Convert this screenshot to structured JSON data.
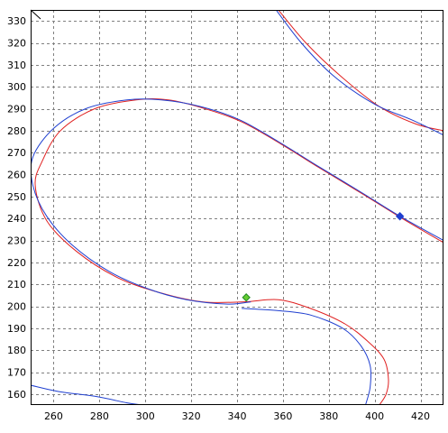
{
  "chart_data": {
    "type": "line",
    "title": "",
    "xlabel": "",
    "ylabel": "",
    "xlim": [
      250,
      430
    ],
    "ylim": [
      155,
      335
    ],
    "x_ticks": [
      260,
      280,
      300,
      320,
      340,
      360,
      380,
      400,
      420
    ],
    "y_ticks": [
      160,
      170,
      180,
      190,
      200,
      210,
      220,
      230,
      240,
      250,
      260,
      270,
      280,
      290,
      300,
      310,
      320,
      330
    ],
    "grid": true,
    "grid_color": "#808080",
    "legend": "none",
    "series": [
      {
        "color": "#e02020",
        "segments": [
          [
            [
              358,
              335
            ],
            [
              370,
              320
            ],
            [
              385,
              305
            ],
            [
              402,
              291
            ],
            [
              418,
              283
            ],
            [
              430,
              280
            ]
          ],
          [
            [
              430,
              229
            ],
            [
              412,
              240
            ],
            [
              395,
              251
            ],
            [
              376,
              263
            ],
            [
              359,
              274
            ],
            [
              342,
              284
            ],
            [
              326,
              290
            ],
            [
              310,
              294
            ],
            [
              296,
              294
            ],
            [
              278,
              290
            ],
            [
              263,
              280
            ],
            [
              255,
              266
            ],
            [
              252,
              255
            ],
            [
              257,
              239
            ],
            [
              270,
              225
            ],
            [
              288,
              213
            ],
            [
              307,
              206
            ],
            [
              325,
              202
            ],
            [
              343,
              202
            ],
            [
              358,
              203
            ],
            [
              372,
              199
            ],
            [
              387,
              192
            ],
            [
              397,
              184
            ],
            [
              404,
              176
            ],
            [
              406,
              167
            ],
            [
              405,
              160
            ],
            [
              402,
              155
            ]
          ]
        ]
      },
      {
        "color": "#1f3fd0",
        "segments": [
          [
            [
              357,
              335
            ],
            [
              368,
              320
            ],
            [
              382,
              305
            ],
            [
              400,
              292
            ],
            [
              416,
              285
            ],
            [
              430,
              278
            ]
          ],
          [
            [
              430,
              230
            ],
            [
              411,
              241
            ],
            [
              394,
              252
            ],
            [
              375,
              264
            ],
            [
              358,
              275
            ],
            [
              341,
              285
            ],
            [
              324,
              291
            ],
            [
              307,
              294
            ],
            [
              292,
              294
            ],
            [
              274,
              290
            ],
            [
              260,
              281
            ],
            [
              251,
              268
            ],
            [
              251,
              255
            ],
            [
              257,
              241
            ],
            [
              268,
              228
            ],
            [
              284,
              216
            ],
            [
              301,
              208
            ],
            [
              318,
              203
            ],
            [
              336,
              201
            ],
            [
              346,
              202
            ]
          ],
          [
            [
              342,
              199
            ],
            [
              358,
              198
            ],
            [
              372,
              196
            ],
            [
              386,
              190
            ],
            [
              394,
              182
            ],
            [
              398,
              173
            ],
            [
              398,
              163
            ],
            [
              396,
              155
            ]
          ],
          [
            [
              250,
              164
            ],
            [
              263,
              161
            ],
            [
              278,
              159
            ],
            [
              292,
              156
            ],
            [
              299,
              155
            ]
          ]
        ]
      }
    ],
    "markers": [
      {
        "color": "#228b22",
        "fill": "#66cc33",
        "x": 344,
        "y": 204
      },
      {
        "color": "#1f3fd0",
        "fill": "#1f3fd0",
        "x": 411,
        "y": 241
      }
    ],
    "corner_line": {
      "color": "#000000"
    }
  }
}
